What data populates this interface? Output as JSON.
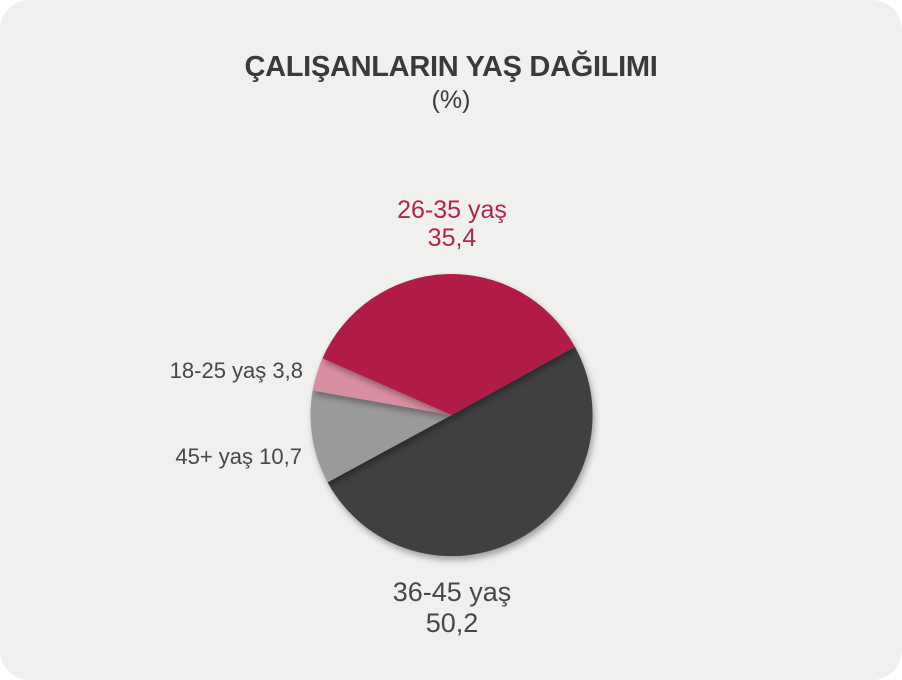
{
  "page": {
    "background_color": "#f0f0ef",
    "outer_corner_color": "#ffffff"
  },
  "header": {
    "title": "ÇALIŞANLARIN YAŞ DAĞILIMI",
    "subtitle": "(%)",
    "text_color": "#3a3a3c"
  },
  "chart_data": {
    "type": "pie",
    "title": "ÇALIŞANLARIN YAŞ DAĞILIMI",
    "subtitle": "(%)",
    "unit": "%",
    "decimal_separator": ",",
    "start_angle_deg": 29,
    "direction": "counterclockwise",
    "legend_position": "none",
    "labels_style": "outside-callouts",
    "slices": [
      {
        "label": "26-35 yaş",
        "value": 35.4,
        "display": "35,4",
        "color": "#b01f44",
        "label_color": "#b3244a",
        "label_position": "top"
      },
      {
        "label": "18-25 yaş",
        "value": 3.8,
        "display": "3,8",
        "color": "#d98fa2",
        "label_color": "#47474a",
        "label_position": "left-upper"
      },
      {
        "label": "45+ yaş",
        "value": 10.7,
        "display": "10,7",
        "color": "#9b9a9a",
        "label_color": "#47474a",
        "label_position": "left-lower"
      },
      {
        "label": "36-45 yaş",
        "value": 50.2,
        "display": "50,2",
        "color": "#414043",
        "label_color": "#47474a",
        "label_position": "bottom"
      }
    ]
  }
}
